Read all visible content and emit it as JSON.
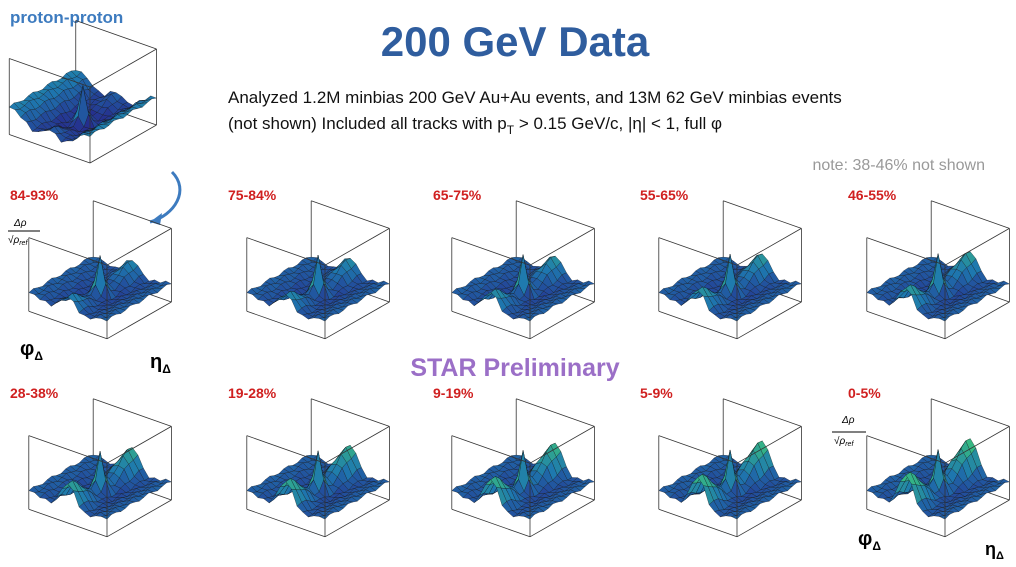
{
  "header": {
    "label": "proton-proton",
    "title": "200 GeV Data",
    "line1": "Analyzed 1.2M minbias 200 GeV Au+Au events, and 13M 62 GeV minbias events",
    "line2_a": "(not shown) Included all tracks with p",
    "line2_sub": "T",
    "line2_b": " > 0.15 GeV/c, |η| < 1, full φ",
    "note": "note: 38-46% not shown"
  },
  "panels": [
    "84-93%",
    "75-84%",
    "65-75%",
    "55-65%",
    "46-55%",
    "28-38%",
    "19-28%",
    "9-19%",
    "5-9%",
    "0-5%"
  ],
  "watermark": "STAR Preliminary",
  "axis_labels": {
    "numerator": "Δρ",
    "denominator": "√ρ",
    "denominator_sub": "ref",
    "phi": "φ",
    "eta": "η",
    "sub": "Δ"
  }
}
